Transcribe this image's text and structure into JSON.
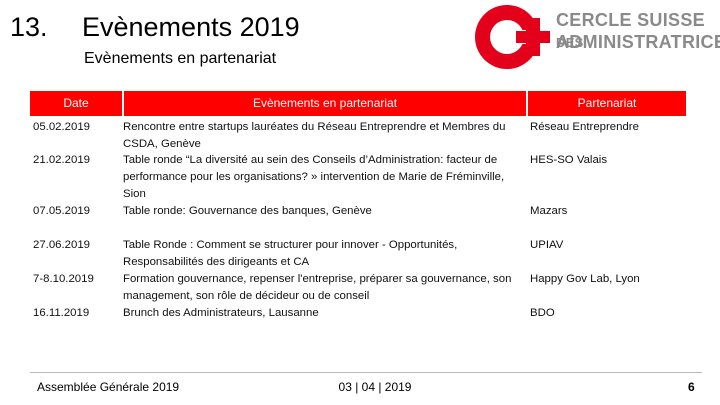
{
  "header": {
    "number": "13.",
    "title": "Evènements 2019",
    "subtitle": "Evènements en partenariat"
  },
  "logo": {
    "line1": "CERCLE SUISSE",
    "line1_small": "DES",
    "line2": "ADMINISTRATRICES"
  },
  "table": {
    "columns": [
      "Date",
      "Evènements en partenariat",
      "Partenariat"
    ],
    "rows": [
      [
        "05.02.2019",
        "Rencontre entre startups lauréates du Réseau Entreprendre et Membres du CSDA, Genève",
        "Réseau Entreprendre"
      ],
      [
        "21.02.2019",
        "Table ronde “La diversité au sein des Conseils d’Administration: facteur de performance pour les organisations? » intervention de Marie de Fréminville, Sion",
        "HES-SO Valais"
      ],
      [
        "07.05.2019",
        "Table ronde: Gouvernance des banques, Genève",
        "Mazars"
      ],
      [
        "27.06.2019",
        "Table Ronde : Comment se structurer pour innover - Opportunités, Responsabilités des dirigeants et CA",
        "UPIAV"
      ],
      [
        "7-8.10.2019",
        "Formation gouvernance, repenser l'entreprise, préparer sa gouvernance, son management, son rôle de décideur ou de conseil",
        "Happy Gov Lab, Lyon"
      ],
      [
        "16.11.2019",
        "Brunch des Administrateurs, Lausanne",
        "BDO"
      ]
    ]
  },
  "footer": {
    "left": "Assemblée Générale 2019",
    "center": "03 | 04 | 2019",
    "page": "6"
  }
}
